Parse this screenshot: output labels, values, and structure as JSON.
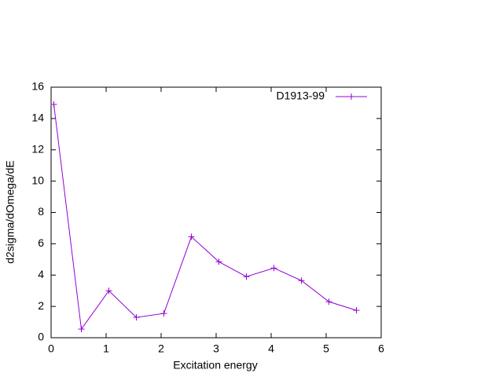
{
  "chart_data": {
    "type": "line",
    "x_label": "Excitation energy",
    "y_label": "d2sigma/dOmega/dE",
    "series": [
      {
        "name": "D1913-99",
        "color": "#9400d3",
        "x": [
          0.05,
          0.55,
          1.05,
          1.55,
          2.05,
          2.55,
          3.05,
          3.55,
          4.05,
          4.55,
          5.05,
          5.55
        ],
        "values": [
          14.9,
          0.55,
          3.0,
          1.3,
          1.55,
          6.45,
          4.85,
          3.9,
          4.45,
          3.65,
          2.3,
          1.75
        ]
      }
    ],
    "xlim": [
      0,
      6
    ],
    "xticks": [
      0,
      1,
      2,
      3,
      4,
      5,
      6
    ],
    "ylim": [
      0,
      16
    ],
    "yticks": [
      0,
      2,
      4,
      6,
      8,
      10,
      12,
      14,
      16
    ],
    "legend_position": "top-right"
  }
}
